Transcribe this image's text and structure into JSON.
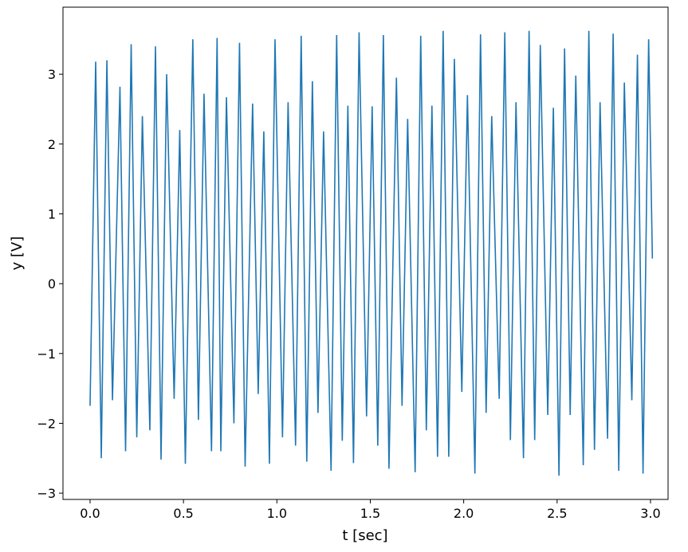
{
  "chart_data": {
    "type": "line",
    "xlabel": "t [sec]",
    "ylabel": "y [V]",
    "x": [
      0.0,
      0.03,
      0.06,
      0.09,
      0.12,
      0.16,
      0.19,
      0.22,
      0.25,
      0.28,
      0.32,
      0.35,
      0.38,
      0.41,
      0.45,
      0.48,
      0.51,
      0.55,
      0.58,
      0.61,
      0.65,
      0.68,
      0.7,
      0.73,
      0.77,
      0.8,
      0.83,
      0.87,
      0.9,
      0.93,
      0.96,
      0.99,
      1.03,
      1.06,
      1.1,
      1.13,
      1.16,
      1.19,
      1.22,
      1.25,
      1.29,
      1.32,
      1.35,
      1.38,
      1.41,
      1.44,
      1.48,
      1.51,
      1.54,
      1.57,
      1.6,
      1.64,
      1.67,
      1.7,
      1.74,
      1.77,
      1.8,
      1.83,
      1.86,
      1.89,
      1.92,
      1.95,
      1.99,
      2.02,
      2.06,
      2.09,
      2.12,
      2.15,
      2.19,
      2.22,
      2.25,
      2.28,
      2.32,
      2.35,
      2.38,
      2.41,
      2.45,
      2.48,
      2.51,
      2.54,
      2.57,
      2.6,
      2.64,
      2.67,
      2.7,
      2.73,
      2.77,
      2.8,
      2.83,
      2.86,
      2.9,
      2.93,
      2.96,
      2.99,
      3.01
    ],
    "series": [
      {
        "color": "#1f77b4",
        "values": [
          -1.75,
          3.18,
          -2.5,
          3.2,
          -1.67,
          2.82,
          -2.4,
          3.43,
          -2.2,
          2.4,
          -2.1,
          3.4,
          -2.52,
          3.0,
          -1.65,
          2.2,
          -2.58,
          3.5,
          -1.95,
          2.72,
          -2.4,
          3.52,
          -2.4,
          2.67,
          -2.0,
          3.45,
          -2.62,
          2.58,
          -1.58,
          2.18,
          -2.58,
          3.5,
          -2.2,
          2.6,
          -2.32,
          3.55,
          -2.55,
          2.9,
          -1.85,
          2.18,
          -2.68,
          3.56,
          -2.25,
          2.55,
          -2.57,
          3.6,
          -1.9,
          2.54,
          -2.32,
          3.56,
          -2.65,
          2.95,
          -1.75,
          2.36,
          -2.7,
          3.55,
          -2.1,
          2.55,
          -2.48,
          3.62,
          -2.48,
          3.22,
          -1.55,
          2.7,
          -2.72,
          3.57,
          -1.85,
          2.4,
          -1.65,
          3.6,
          -2.24,
          2.6,
          -2.5,
          3.62,
          -2.24,
          3.42,
          -1.88,
          2.52,
          -2.75,
          3.37,
          -1.88,
          2.98,
          -2.6,
          3.62,
          -2.38,
          2.6,
          -2.22,
          3.58,
          -2.68,
          2.88,
          -1.67,
          3.28,
          -2.72,
          3.5,
          0.36
        ]
      }
    ],
    "xlim": [
      -0.145,
      3.094
    ],
    "ylim": [
      -3.09,
      3.96
    ],
    "xticks": [
      {
        "value": 0,
        "label": "0.0"
      },
      {
        "value": 0.5,
        "label": "0.5"
      },
      {
        "value": 1,
        "label": "1.0"
      },
      {
        "value": 1.5,
        "label": "1.5"
      },
      {
        "value": 2,
        "label": "2.0"
      },
      {
        "value": 2.5,
        "label": "2.5"
      },
      {
        "value": 3,
        "label": "3.0"
      }
    ],
    "yticks": [
      {
        "value": -3,
        "label": "−3"
      },
      {
        "value": -2,
        "label": "−2"
      },
      {
        "value": -1,
        "label": "−1"
      },
      0,
      1,
      2,
      3
    ],
    "grid": false
  }
}
